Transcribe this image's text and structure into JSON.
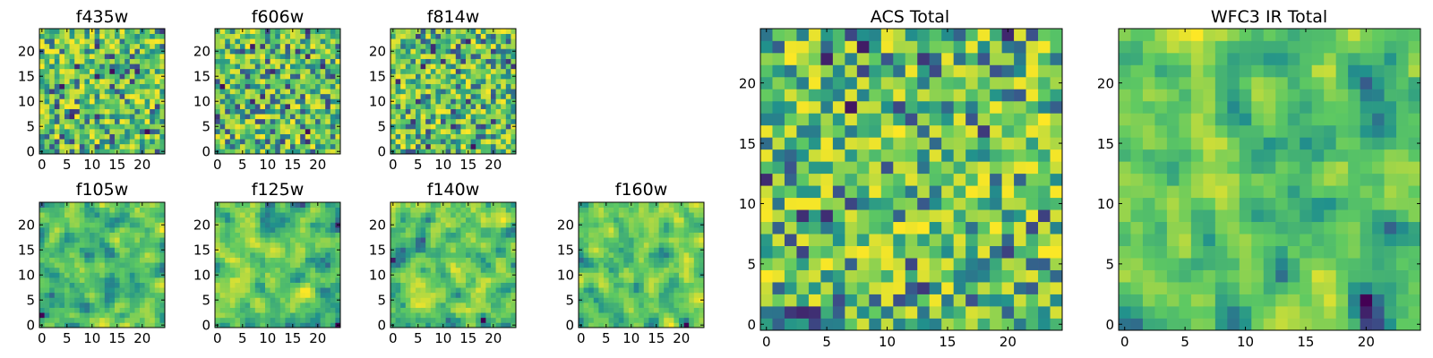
{
  "figure": {
    "colormap": [
      "#440154",
      "#3b528b",
      "#21918c",
      "#5ec962",
      "#fde725"
    ],
    "frame_color": "#000000"
  },
  "chart_data": [
    {
      "id": "f435w",
      "type": "heatmap",
      "title": "f435w",
      "grid_size": 25,
      "seed": 11,
      "smooth": 0,
      "value_range": [
        0,
        1
      ],
      "xlim": [
        -0.5,
        24.5
      ],
      "ylim": [
        -0.5,
        24.5
      ],
      "xticks": [
        "0",
        "5",
        "10",
        "15",
        "20"
      ],
      "yticks": [
        "0",
        "5",
        "10",
        "15",
        "20"
      ]
    },
    {
      "id": "f606w",
      "type": "heatmap",
      "title": "f606w",
      "grid_size": 25,
      "seed": 23,
      "smooth": 0,
      "value_range": [
        0,
        1
      ],
      "xlim": [
        -0.5,
        24.5
      ],
      "ylim": [
        -0.5,
        24.5
      ],
      "xticks": [
        "0",
        "5",
        "10",
        "15",
        "20"
      ],
      "yticks": [
        "0",
        "5",
        "10",
        "15",
        "20"
      ]
    },
    {
      "id": "f814w",
      "type": "heatmap",
      "title": "f814w",
      "grid_size": 25,
      "seed": 37,
      "smooth": 0,
      "value_range": [
        0,
        1
      ],
      "xlim": [
        -0.5,
        24.5
      ],
      "ylim": [
        -0.5,
        24.5
      ],
      "xticks": [
        "0",
        "5",
        "10",
        "15",
        "20"
      ],
      "yticks": [
        "0",
        "5",
        "10",
        "15",
        "20"
      ]
    },
    {
      "id": "f105w",
      "type": "heatmap",
      "title": "f105w",
      "grid_size": 25,
      "seed": 41,
      "smooth": 1,
      "value_range": [
        0,
        1
      ],
      "xlim": [
        -0.5,
        24.5
      ],
      "ylim": [
        -0.5,
        24.5
      ],
      "xticks": [
        "0",
        "5",
        "10",
        "15",
        "20"
      ],
      "yticks": [
        "0",
        "5",
        "10",
        "15",
        "20"
      ]
    },
    {
      "id": "f125w",
      "type": "heatmap",
      "title": "f125w",
      "grid_size": 25,
      "seed": 53,
      "smooth": 1,
      "value_range": [
        0,
        1
      ],
      "xlim": [
        -0.5,
        24.5
      ],
      "ylim": [
        -0.5,
        24.5
      ],
      "xticks": [
        "0",
        "5",
        "10",
        "15",
        "20"
      ],
      "yticks": [
        "0",
        "5",
        "10",
        "15",
        "20"
      ]
    },
    {
      "id": "f140w",
      "type": "heatmap",
      "title": "f140w",
      "grid_size": 25,
      "seed": 67,
      "smooth": 1,
      "value_range": [
        0,
        1
      ],
      "xlim": [
        -0.5,
        24.5
      ],
      "ylim": [
        -0.5,
        24.5
      ],
      "xticks": [
        "0",
        "5",
        "10",
        "15",
        "20"
      ],
      "yticks": [
        "0",
        "5",
        "10",
        "15",
        "20"
      ]
    },
    {
      "id": "f160w",
      "type": "heatmap",
      "title": "f160w",
      "grid_size": 25,
      "seed": 79,
      "smooth": 1,
      "value_range": [
        0,
        1
      ],
      "xlim": [
        -0.5,
        24.5
      ],
      "ylim": [
        -0.5,
        24.5
      ],
      "xticks": [
        "0",
        "5",
        "10",
        "15",
        "20"
      ],
      "yticks": [
        "0",
        "5",
        "10",
        "15",
        "20"
      ]
    },
    {
      "id": "acs-total",
      "type": "heatmap",
      "title": "ACS Total",
      "grid_size": 25,
      "seed": 97,
      "smooth": 0,
      "value_range": [
        0,
        1
      ],
      "xlim": [
        -0.5,
        24.5
      ],
      "ylim": [
        -0.5,
        24.5
      ],
      "xticks": [
        "0",
        "5",
        "10",
        "15",
        "20"
      ],
      "yticks": [
        "0",
        "5",
        "10",
        "15",
        "20"
      ]
    },
    {
      "id": "wfc3-ir-total",
      "type": "heatmap",
      "title": "WFC3 IR Total",
      "grid_size": 25,
      "seed": 131,
      "smooth": 1,
      "value_range": [
        0,
        1
      ],
      "xlim": [
        -0.5,
        24.5
      ],
      "ylim": [
        -0.5,
        24.5
      ],
      "xticks": [
        "0",
        "5",
        "10",
        "15",
        "20"
      ],
      "yticks": [
        "0",
        "5",
        "10",
        "15",
        "20"
      ]
    }
  ]
}
